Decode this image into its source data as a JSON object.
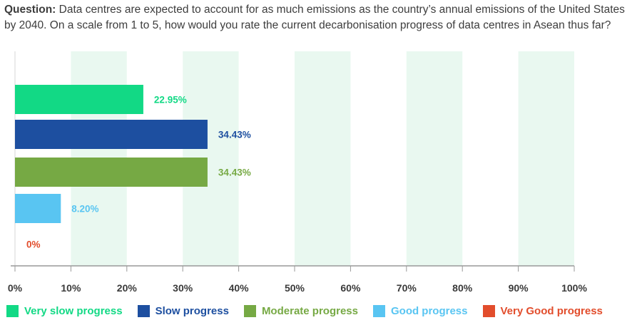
{
  "question": {
    "label": "Question:",
    "text": "Data centres are expected to account for as much emissions as the country’s annual emissions of the United States by 2040. On a scale from 1 to 5, how would you rate the current decarbonisation progress of data centres in Asean thus far?"
  },
  "colors": {
    "band": "#e9f8f0",
    "axis": "#999999",
    "tick_label": "#3a3a3a"
  },
  "chart_data": {
    "type": "bar",
    "orientation": "horizontal",
    "title": "",
    "xlabel": "",
    "ylabel": "",
    "xlim": [
      0,
      100
    ],
    "x_ticks": [
      0,
      10,
      20,
      30,
      40,
      50,
      60,
      70,
      80,
      90,
      100
    ],
    "x_tick_labels": [
      "0%",
      "10%",
      "20%",
      "30%",
      "40%",
      "50%",
      "60%",
      "70%",
      "80%",
      "90%",
      "100%"
    ],
    "grid": "alternating vertical bands",
    "categories": [
      "Very slow progress",
      "Slow progress",
      "Moderate progress",
      "Good progress",
      "Very Good progress"
    ],
    "values": [
      22.95,
      34.43,
      34.43,
      8.2,
      0
    ],
    "value_labels": [
      "22.95%",
      "34.43%",
      "34.43%",
      "8.20%",
      "0%"
    ],
    "bar_colors": [
      "#12d985",
      "#1d4fa0",
      "#76a944",
      "#59c5f2",
      "#e24d2c"
    ],
    "label_colors": [
      "#12d985",
      "#1d4fa0",
      "#76a944",
      "#59c5f2",
      "#e24d2c"
    ],
    "legend_position": "bottom"
  }
}
